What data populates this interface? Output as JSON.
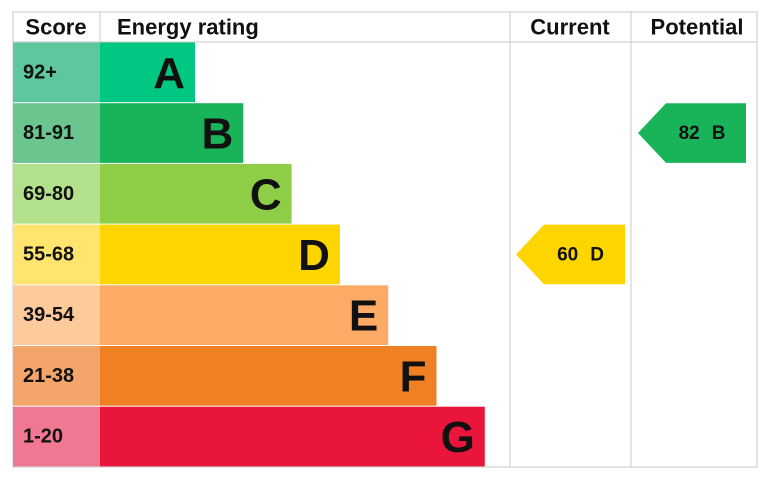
{
  "header": {
    "score": "Score",
    "rating": "Energy rating",
    "current": "Current",
    "potential": "Potential"
  },
  "rows": [
    {
      "score": "92+",
      "rating": "A"
    },
    {
      "score": "81-91",
      "rating": "B"
    },
    {
      "score": "69-80",
      "rating": "C"
    },
    {
      "score": "55-68",
      "rating": "D"
    },
    {
      "score": "39-54",
      "rating": "E"
    },
    {
      "score": "21-38",
      "rating": "F"
    },
    {
      "score": "1-20",
      "rating": "G"
    }
  ],
  "current": {
    "score": 60,
    "rating": "D"
  },
  "potential": {
    "score": 82,
    "rating": "B"
  }
}
